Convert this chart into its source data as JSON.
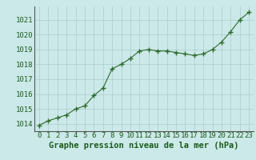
{
  "x": [
    0,
    1,
    2,
    3,
    4,
    5,
    6,
    7,
    8,
    9,
    10,
    11,
    12,
    13,
    14,
    15,
    16,
    17,
    18,
    19,
    20,
    21,
    22,
    23
  ],
  "y": [
    1013.9,
    1014.2,
    1014.4,
    1014.6,
    1015.0,
    1015.2,
    1015.9,
    1016.4,
    1017.7,
    1018.0,
    1018.4,
    1018.9,
    1019.0,
    1018.9,
    1018.9,
    1018.8,
    1018.7,
    1018.6,
    1018.7,
    1019.0,
    1019.5,
    1020.2,
    1021.0,
    1021.5
  ],
  "line_color": "#2d6a2d",
  "marker": "+",
  "marker_size": 4,
  "bg_color": "#cce9e9",
  "grid_color": "#aacccc",
  "xlabel": "Graphe pression niveau de la mer (hPa)",
  "xlabel_color": "#1a5c1a",
  "xlabel_fontsize": 7.5,
  "tick_color": "#1a5c1a",
  "tick_fontsize": 6.5,
  "ylim": [
    1013.5,
    1021.9
  ],
  "yticks": [
    1014,
    1015,
    1016,
    1017,
    1018,
    1019,
    1020,
    1021
  ],
  "xlim": [
    -0.5,
    23.5
  ],
  "xticks": [
    0,
    1,
    2,
    3,
    4,
    5,
    6,
    7,
    8,
    9,
    10,
    11,
    12,
    13,
    14,
    15,
    16,
    17,
    18,
    19,
    20,
    21,
    22,
    23
  ]
}
